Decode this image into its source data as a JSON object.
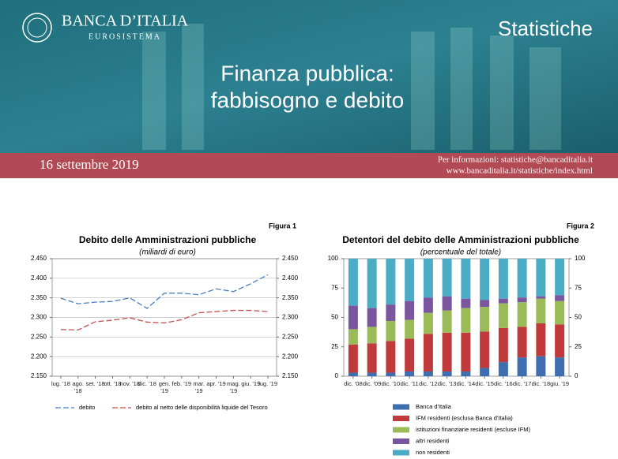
{
  "header": {
    "brand": "BANCA D’ITALIA",
    "subbrand": "EUROSISTEMA",
    "section": "Statistiche",
    "title_line1": "Finanza pubblica:",
    "title_line2": "fabbisogno e debito",
    "date": "16 settembre 2019",
    "contact": "Per informazioni: statistiche@bancaditalia.it",
    "website": "www.bancaditalia.it/statistiche/index.html"
  },
  "chart_data": [
    {
      "type": "line",
      "figure": "Figura 1",
      "title": "Debito delle Amministrazioni pubbliche",
      "subtitle": "(miliardi di euro)",
      "categories": [
        "lug. '18",
        "ago. '18",
        "set. '18",
        "ott. '18",
        "nov. '18",
        "dic. '18",
        "gen. '19",
        "feb. '19",
        "mar. '19",
        "apr. '19",
        "mag. '19",
        "giu. '19",
        "lug. '19"
      ],
      "series": [
        {
          "name": "debito",
          "color": "#4a7ebb",
          "values": [
            2349,
            2335,
            2339,
            2341,
            2350,
            2323,
            2362,
            2362,
            2358,
            2373,
            2366,
            2386,
            2409
          ]
        },
        {
          "name": "debito al netto delle disponibilità liquide del Tesoro",
          "color": "#c0504d",
          "values": [
            2269,
            2268,
            2289,
            2293,
            2299,
            2288,
            2286,
            2294,
            2312,
            2315,
            2318,
            2318,
            2315
          ]
        }
      ],
      "ylim": [
        2150,
        2450
      ],
      "yticks": [
        {
          "value": 2150,
          "label": "2.150"
        },
        {
          "value": 2200,
          "label": "2.200"
        },
        {
          "value": 2250,
          "label": "2.250"
        },
        {
          "value": 2300,
          "label": "2.300"
        },
        {
          "value": 2350,
          "label": "2.350"
        },
        {
          "value": 2400,
          "label": "2.400"
        },
        {
          "value": 2450,
          "label": "2.450"
        }
      ],
      "grid": true,
      "legend": "bottom"
    },
    {
      "type": "bar",
      "stacked": true,
      "figure": "Figura 2",
      "title": "Detentori del debito delle Amministrazioni pubbliche",
      "subtitle": "(percentuale del totale)",
      "categories": [
        "dic. '08",
        "dic. '09",
        "dic. '10",
        "dic. '11",
        "dic. '12",
        "dic. '13",
        "dic. '14",
        "dic. '15",
        "dic. '16",
        "dic. '17",
        "dic. '18",
        "giu. '19"
      ],
      "series": [
        {
          "name": "Banca d'Italia",
          "color": "#3e6db0",
          "values": [
            3,
            3,
            3,
            4,
            4,
            4,
            4,
            7,
            12,
            16,
            17,
            16
          ]
        },
        {
          "name": "IFM residenti (esclusa Banca d'Italia)",
          "color": "#c0393b",
          "values": [
            24,
            25,
            27,
            28,
            32,
            33,
            33,
            31,
            29,
            26,
            28,
            28
          ]
        },
        {
          "name": "istituzioni finanziarie residenti (escluse IFM)",
          "color": "#9bbb59",
          "values": [
            13,
            14,
            17,
            16,
            18,
            19,
            21,
            21,
            21,
            21,
            21,
            20
          ]
        },
        {
          "name": "altri residenti",
          "color": "#7a569e",
          "values": [
            20,
            16,
            14,
            16,
            13,
            12,
            8,
            6,
            4,
            4,
            2,
            5
          ]
        },
        {
          "name": "non residenti",
          "color": "#4bacc6",
          "values": [
            40,
            42,
            39,
            36,
            33,
            32,
            34,
            35,
            34,
            33,
            32,
            31
          ]
        }
      ],
      "ylim": [
        0,
        100
      ],
      "yticks": [
        0,
        25,
        50,
        75,
        100
      ],
      "grid": false,
      "legend": "bottom"
    }
  ]
}
